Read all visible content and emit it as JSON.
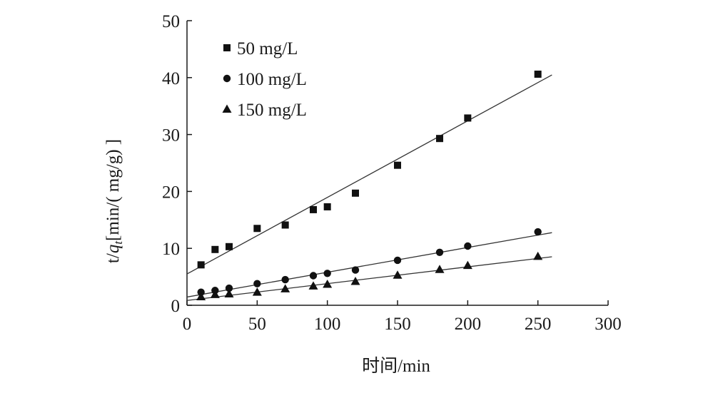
{
  "chart_data": {
    "type": "scatter",
    "xlabel": "时间/min",
    "ylabel_parts": [
      "t/",
      "q",
      "t",
      "[min/( mg/g) ]"
    ],
    "xlim": [
      0,
      300
    ],
    "ylim": [
      0,
      50
    ],
    "xticks": [
      "0",
      "50",
      "100",
      "150",
      "200",
      "250",
      "300"
    ],
    "yticks": [
      "0",
      "10",
      "20",
      "30",
      "40",
      "50"
    ],
    "grid": false,
    "legend_position": "top-left",
    "series": [
      {
        "name": "50 mg/L",
        "marker": "square",
        "x": [
          10,
          20,
          30,
          50,
          70,
          90,
          100,
          120,
          150,
          180,
          200,
          250
        ],
        "y": [
          7.1,
          9.8,
          10.3,
          13.5,
          14.1,
          16.8,
          17.3,
          19.7,
          24.6,
          29.3,
          32.9,
          40.6
        ],
        "fit": {
          "slope": 0.1345,
          "intercept": 5.5,
          "x_range": [
            0,
            260
          ]
        }
      },
      {
        "name": "100 mg/L",
        "marker": "circle",
        "x": [
          10,
          20,
          30,
          50,
          70,
          90,
          100,
          120,
          150,
          180,
          200,
          250
        ],
        "y": [
          2.3,
          2.6,
          3.0,
          3.8,
          4.5,
          5.2,
          5.6,
          6.2,
          7.9,
          9.3,
          10.4,
          12.9
        ],
        "fit": {
          "slope": 0.0435,
          "intercept": 1.45,
          "x_range": [
            0,
            260
          ]
        }
      },
      {
        "name": "150 mg/L",
        "marker": "triangle",
        "x": [
          10,
          20,
          30,
          50,
          70,
          90,
          100,
          120,
          150,
          180,
          200,
          250
        ],
        "y": [
          1.5,
          1.9,
          2.0,
          2.3,
          2.9,
          3.4,
          3.7,
          4.2,
          5.3,
          6.3,
          7.0,
          8.6
        ],
        "fit": {
          "slope": 0.0295,
          "intercept": 0.85,
          "x_range": [
            0,
            260
          ]
        }
      }
    ]
  }
}
